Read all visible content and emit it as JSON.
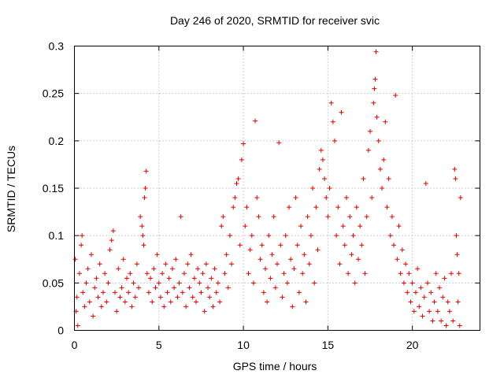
{
  "chart_data": {
    "type": "scatter",
    "title": "Day 246 of 2020, SRMTID for receiver svic",
    "xlabel": "GPS time / hours",
    "ylabel": "SRMTID / TECUs",
    "xlim": [
      0,
      24
    ],
    "ylim": [
      0,
      0.3
    ],
    "xticks": [
      0,
      5,
      10,
      15,
      20
    ],
    "xtick_labels": [
      "0",
      "5",
      "10",
      "15",
      "20"
    ],
    "yticks": [
      0,
      0.05,
      0.1,
      0.15,
      0.2,
      0.25,
      0.3
    ],
    "ytick_labels": [
      "0",
      "0.05",
      "0.1",
      "0.15",
      "0.2",
      "0.25",
      "0.3"
    ],
    "grid": true,
    "marker": "+",
    "series_color": "#e00000",
    "series": [
      {
        "name": "SRMTID",
        "points": [
          [
            0.05,
            0.075
          ],
          [
            0.1,
            0.02
          ],
          [
            0.15,
            0.035
          ],
          [
            0.2,
            0.005
          ],
          [
            0.3,
            0.06
          ],
          [
            0.4,
            0.09
          ],
          [
            0.45,
            0.1
          ],
          [
            0.5,
            0.04
          ],
          [
            0.6,
            0.025
          ],
          [
            0.7,
            0.05
          ],
          [
            0.8,
            0.065
          ],
          [
            0.9,
            0.03
          ],
          [
            1.0,
            0.08
          ],
          [
            1.1,
            0.015
          ],
          [
            1.2,
            0.045
          ],
          [
            1.3,
            0.055
          ],
          [
            1.4,
            0.035
          ],
          [
            1.5,
            0.07
          ],
          [
            1.6,
            0.025
          ],
          [
            1.7,
            0.04
          ],
          [
            1.8,
            0.06
          ],
          [
            1.9,
            0.03
          ],
          [
            2.0,
            0.05
          ],
          [
            2.1,
            0.085
          ],
          [
            2.2,
            0.095
          ],
          [
            2.3,
            0.105
          ],
          [
            2.4,
            0.04
          ],
          [
            2.5,
            0.02
          ],
          [
            2.6,
            0.065
          ],
          [
            2.7,
            0.035
          ],
          [
            2.8,
            0.045
          ],
          [
            2.9,
            0.075
          ],
          [
            3.0,
            0.03
          ],
          [
            3.1,
            0.055
          ],
          [
            3.2,
            0.04
          ],
          [
            3.3,
            0.06
          ],
          [
            3.4,
            0.025
          ],
          [
            3.5,
            0.05
          ],
          [
            3.6,
            0.035
          ],
          [
            3.7,
            0.07
          ],
          [
            3.8,
            0.045
          ],
          [
            3.9,
            0.12
          ],
          [
            4.0,
            0.11
          ],
          [
            4.05,
            0.1
          ],
          [
            4.1,
            0.09
          ],
          [
            4.15,
            0.14
          ],
          [
            4.2,
            0.15
          ],
          [
            4.25,
            0.168
          ],
          [
            4.3,
            0.06
          ],
          [
            4.4,
            0.04
          ],
          [
            4.5,
            0.055
          ],
          [
            4.6,
            0.03
          ],
          [
            4.7,
            0.065
          ],
          [
            4.8,
            0.045
          ],
          [
            4.9,
            0.08
          ],
          [
            5.0,
            0.05
          ],
          [
            5.1,
            0.035
          ],
          [
            5.2,
            0.06
          ],
          [
            5.3,
            0.025
          ],
          [
            5.4,
            0.07
          ],
          [
            5.5,
            0.04
          ],
          [
            5.6,
            0.055
          ],
          [
            5.7,
            0.03
          ],
          [
            5.8,
            0.065
          ],
          [
            5.9,
            0.045
          ],
          [
            6.0,
            0.075
          ],
          [
            6.1,
            0.035
          ],
          [
            6.2,
            0.05
          ],
          [
            6.3,
            0.12
          ],
          [
            6.4,
            0.04
          ],
          [
            6.5,
            0.06
          ],
          [
            6.6,
            0.025
          ],
          [
            6.7,
            0.07
          ],
          [
            6.8,
            0.045
          ],
          [
            6.9,
            0.08
          ],
          [
            7.0,
            0.035
          ],
          [
            7.1,
            0.055
          ],
          [
            7.2,
            0.03
          ],
          [
            7.3,
            0.065
          ],
          [
            7.4,
            0.05
          ],
          [
            7.5,
            0.04
          ],
          [
            7.6,
            0.06
          ],
          [
            7.7,
            0.02
          ],
          [
            7.8,
            0.07
          ],
          [
            7.9,
            0.045
          ],
          [
            8.0,
            0.035
          ],
          [
            8.1,
            0.055
          ],
          [
            8.2,
            0.025
          ],
          [
            8.3,
            0.065
          ],
          [
            8.4,
            0.04
          ],
          [
            8.5,
            0.05
          ],
          [
            8.6,
            0.03
          ],
          [
            8.7,
            0.11
          ],
          [
            8.8,
            0.12
          ],
          [
            8.9,
            0.06
          ],
          [
            9.0,
            0.08
          ],
          [
            9.1,
            0.045
          ],
          [
            9.2,
            0.1
          ],
          [
            9.3,
            0.07
          ],
          [
            9.4,
            0.13
          ],
          [
            9.5,
            0.14
          ],
          [
            9.6,
            0.155
          ],
          [
            9.7,
            0.16
          ],
          [
            9.8,
            0.09
          ],
          [
            9.9,
            0.18
          ],
          [
            10.0,
            0.197
          ],
          [
            10.1,
            0.11
          ],
          [
            10.2,
            0.13
          ],
          [
            10.3,
            0.06
          ],
          [
            10.4,
            0.085
          ],
          [
            10.5,
            0.1
          ],
          [
            10.6,
            0.05
          ],
          [
            10.7,
            0.221
          ],
          [
            10.8,
            0.14
          ],
          [
            10.9,
            0.12
          ],
          [
            11.0,
            0.075
          ],
          [
            11.1,
            0.09
          ],
          [
            11.2,
            0.04
          ],
          [
            11.3,
            0.065
          ],
          [
            11.4,
            0.03
          ],
          [
            11.5,
            0.1
          ],
          [
            11.6,
            0.055
          ],
          [
            11.7,
            0.08
          ],
          [
            11.8,
            0.12
          ],
          [
            11.9,
            0.045
          ],
          [
            12.0,
            0.07
          ],
          [
            12.1,
            0.198
          ],
          [
            12.2,
            0.09
          ],
          [
            12.3,
            0.035
          ],
          [
            12.4,
            0.06
          ],
          [
            12.5,
            0.1
          ],
          [
            12.6,
            0.05
          ],
          [
            12.7,
            0.13
          ],
          [
            12.8,
            0.075
          ],
          [
            12.9,
            0.025
          ],
          [
            13.0,
            0.065
          ],
          [
            13.1,
            0.14
          ],
          [
            13.2,
            0.09
          ],
          [
            13.3,
            0.04
          ],
          [
            13.4,
            0.11
          ],
          [
            13.5,
            0.06
          ],
          [
            13.6,
            0.08
          ],
          [
            13.7,
            0.03
          ],
          [
            13.8,
            0.12
          ],
          [
            13.9,
            0.07
          ],
          [
            14.0,
            0.1
          ],
          [
            14.1,
            0.15
          ],
          [
            14.2,
            0.05
          ],
          [
            14.3,
            0.13
          ],
          [
            14.4,
            0.085
          ],
          [
            14.5,
            0.17
          ],
          [
            14.6,
            0.19
          ],
          [
            14.7,
            0.18
          ],
          [
            14.8,
            0.16
          ],
          [
            14.9,
            0.14
          ],
          [
            15.0,
            0.12
          ],
          [
            15.1,
            0.15
          ],
          [
            15.2,
            0.24
          ],
          [
            15.3,
            0.22
          ],
          [
            15.4,
            0.2
          ],
          [
            15.5,
            0.1
          ],
          [
            15.6,
            0.13
          ],
          [
            15.7,
            0.07
          ],
          [
            15.8,
            0.23
          ],
          [
            15.9,
            0.11
          ],
          [
            16.0,
            0.09
          ],
          [
            16.1,
            0.14
          ],
          [
            16.2,
            0.06
          ],
          [
            16.3,
            0.12
          ],
          [
            16.4,
            0.08
          ],
          [
            16.5,
            0.1
          ],
          [
            16.6,
            0.05
          ],
          [
            16.7,
            0.13
          ],
          [
            16.8,
            0.075
          ],
          [
            16.9,
            0.11
          ],
          [
            17.0,
            0.09
          ],
          [
            17.1,
            0.16
          ],
          [
            17.2,
            0.06
          ],
          [
            17.3,
            0.12
          ],
          [
            17.4,
            0.19
          ],
          [
            17.5,
            0.21
          ],
          [
            17.6,
            0.14
          ],
          [
            17.7,
            0.24
          ],
          [
            17.75,
            0.255
          ],
          [
            17.8,
            0.265
          ],
          [
            17.85,
            0.294
          ],
          [
            17.9,
            0.225
          ],
          [
            18.0,
            0.2
          ],
          [
            18.1,
            0.17
          ],
          [
            18.2,
            0.15
          ],
          [
            18.3,
            0.18
          ],
          [
            18.4,
            0.22
          ],
          [
            18.5,
            0.13
          ],
          [
            18.6,
            0.16
          ],
          [
            18.7,
            0.1
          ],
          [
            18.8,
            0.12
          ],
          [
            18.9,
            0.09
          ],
          [
            19.0,
            0.248
          ],
          [
            19.1,
            0.075
          ],
          [
            19.2,
            0.11
          ],
          [
            19.3,
            0.06
          ],
          [
            19.4,
            0.085
          ],
          [
            19.5,
            0.05
          ],
          [
            19.6,
            0.07
          ],
          [
            19.7,
            0.04
          ],
          [
            19.8,
            0.06
          ],
          [
            19.9,
            0.03
          ],
          [
            20.0,
            0.05
          ],
          [
            20.1,
            0.02
          ],
          [
            20.2,
            0.04
          ],
          [
            20.3,
            0.065
          ],
          [
            20.4,
            0.025
          ],
          [
            20.5,
            0.045
          ],
          [
            20.6,
            0.015
          ],
          [
            20.7,
            0.035
          ],
          [
            20.8,
            0.155
          ],
          [
            20.9,
            0.05
          ],
          [
            21.0,
            0.02
          ],
          [
            21.1,
            0.04
          ],
          [
            21.2,
            0.01
          ],
          [
            21.3,
            0.03
          ],
          [
            21.4,
            0.06
          ],
          [
            21.5,
            0.02
          ],
          [
            21.6,
            0.045
          ],
          [
            21.7,
            0.01
          ],
          [
            21.8,
            0.035
          ],
          [
            21.9,
            0.055
          ],
          [
            22.0,
            0.005
          ],
          [
            22.1,
            0.03
          ],
          [
            22.2,
            0.02
          ],
          [
            22.3,
            0.06
          ],
          [
            22.4,
            0.01
          ],
          [
            22.5,
            0.17
          ],
          [
            22.55,
            0.16
          ],
          [
            22.6,
            0.1
          ],
          [
            22.65,
            0.08
          ],
          [
            22.7,
            0.03
          ],
          [
            22.75,
            0.06
          ],
          [
            22.8,
            0.005
          ],
          [
            22.85,
            0.14
          ]
        ]
      }
    ]
  }
}
